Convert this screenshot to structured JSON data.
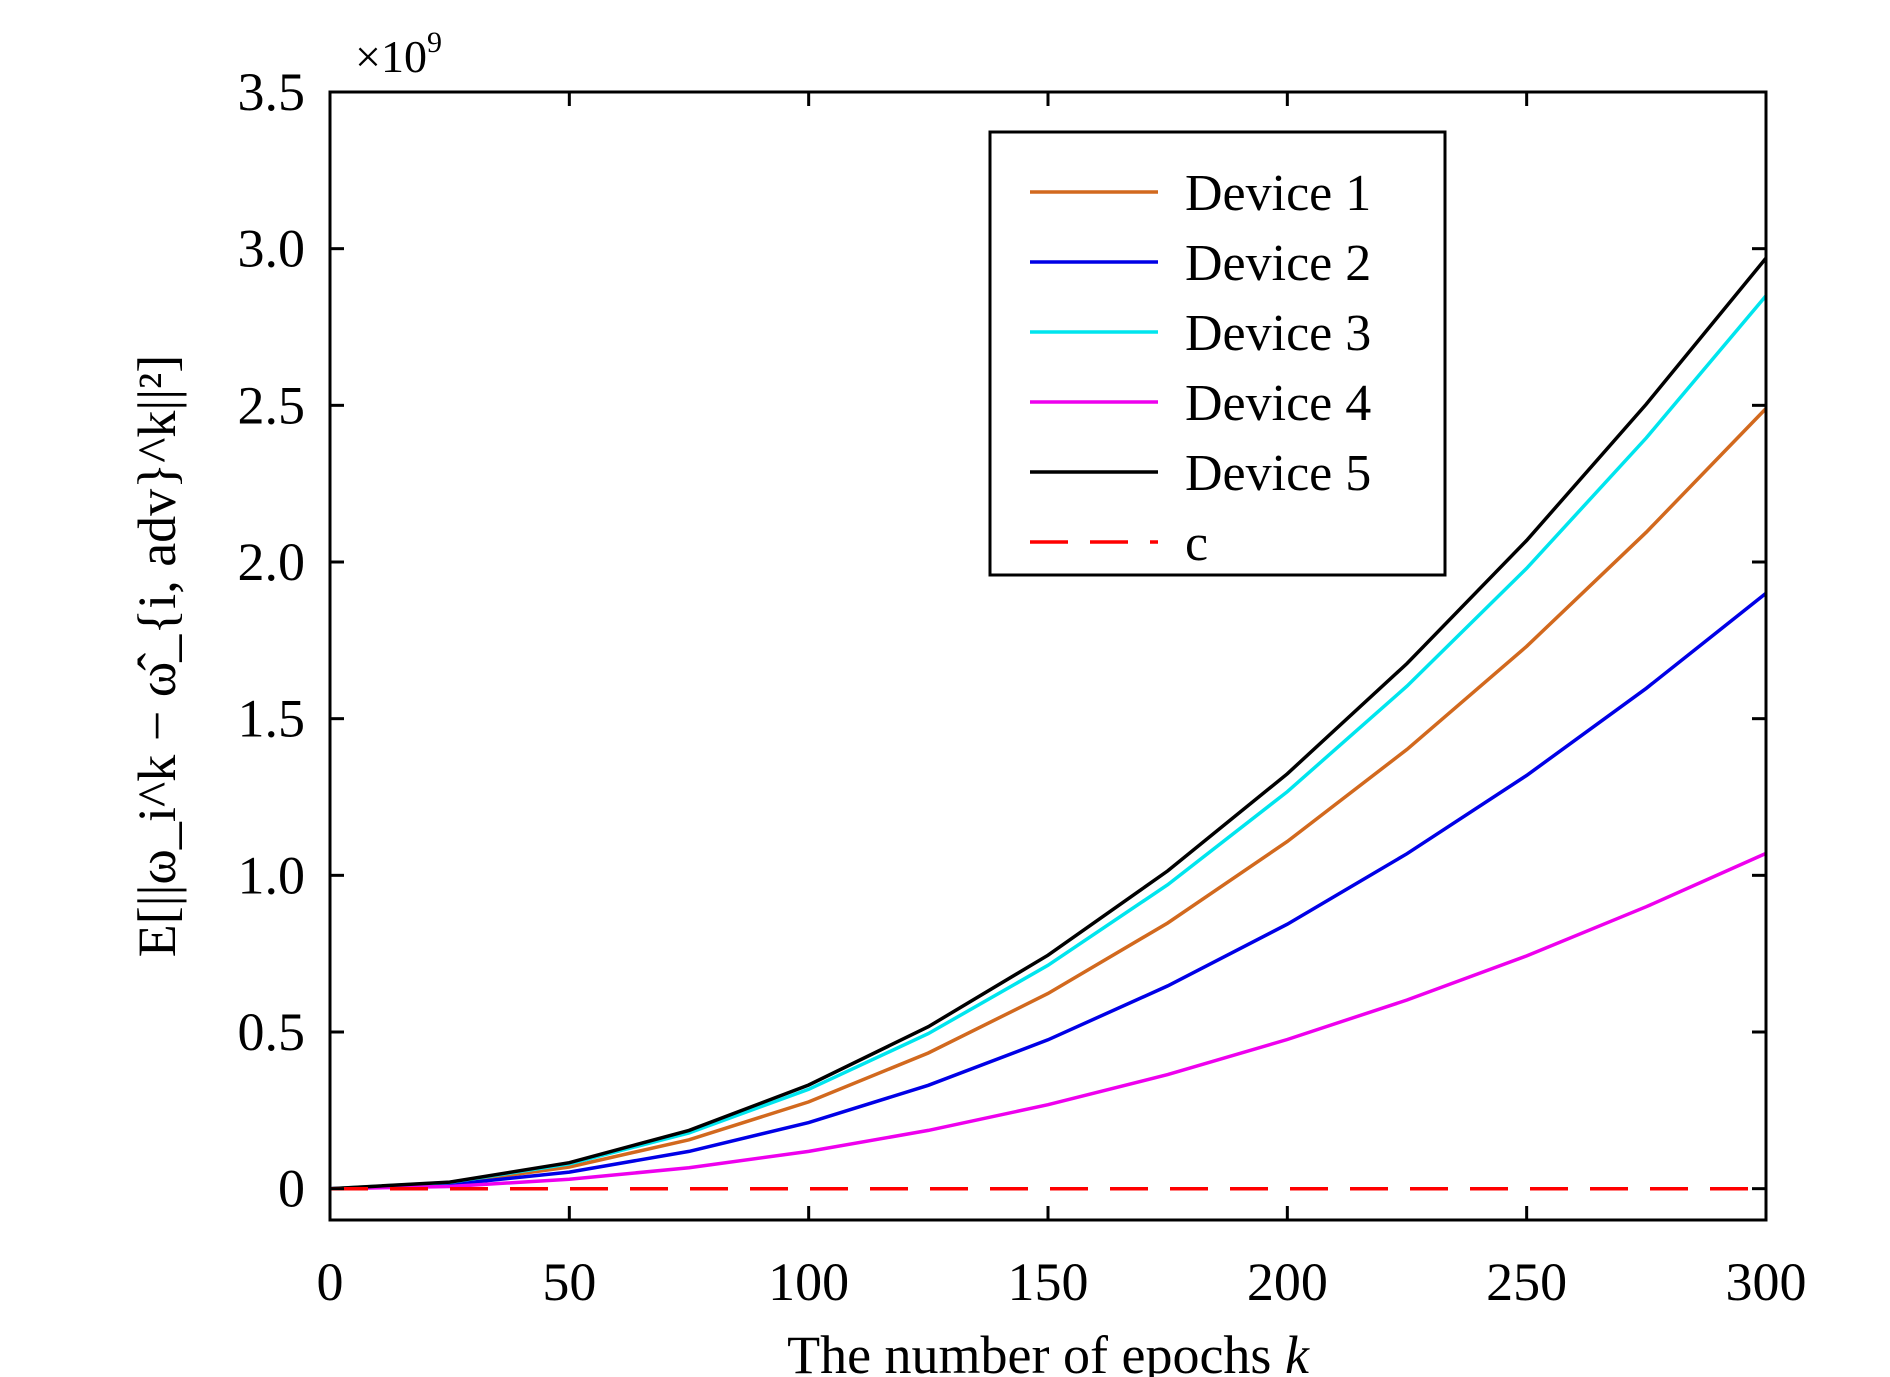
{
  "chart_data": {
    "type": "line",
    "title": "",
    "xlabel": "The number of epochs",
    "xlabel_var": "k",
    "ylabel": "E[||ω_i^k − ω̂_{i, adv}^k||²]",
    "y_multiplier": "×10",
    "y_multiplier_exp": "9",
    "xlim": [
      0,
      300
    ],
    "ylim": [
      -0.1,
      3.5
    ],
    "x_ticks": [
      0,
      50,
      100,
      150,
      200,
      250,
      300
    ],
    "x_tick_labels": [
      "0",
      "50",
      "100",
      "150",
      "200",
      "250",
      "300"
    ],
    "y_ticks": [
      0,
      0.5,
      1.0,
      1.5,
      2.0,
      2.5,
      3.0,
      3.5
    ],
    "y_tick_labels": [
      "0",
      "0.5",
      "1.0",
      "1.5",
      "2.0",
      "2.5",
      "3.0",
      "3.5"
    ],
    "grid": false,
    "legend_position": "top-right",
    "x": [
      0,
      25,
      50,
      75,
      100,
      125,
      150,
      175,
      200,
      225,
      250,
      275,
      300
    ],
    "series": [
      {
        "name": "Device 1",
        "color": "#d2691e",
        "dash": "solid",
        "values": [
          0,
          0.017,
          0.069,
          0.156,
          0.277,
          0.433,
          0.623,
          0.848,
          1.108,
          1.402,
          1.731,
          2.095,
          2.49
        ]
      },
      {
        "name": "Device 2",
        "color": "#0000e6",
        "dash": "solid",
        "values": [
          0,
          0.013,
          0.053,
          0.119,
          0.211,
          0.33,
          0.475,
          0.647,
          0.844,
          1.069,
          1.319,
          1.597,
          1.9
        ]
      },
      {
        "name": "Device 3",
        "color": "#00e5ee",
        "dash": "solid",
        "values": [
          0,
          0.02,
          0.079,
          0.178,
          0.317,
          0.495,
          0.713,
          0.97,
          1.267,
          1.604,
          1.98,
          2.396,
          2.85
        ]
      },
      {
        "name": "Device 4",
        "color": "#ee00ee",
        "dash": "solid",
        "values": [
          0,
          0.007,
          0.03,
          0.067,
          0.119,
          0.186,
          0.268,
          0.364,
          0.476,
          0.602,
          0.743,
          0.9,
          1.07
        ]
      },
      {
        "name": "Device 5",
        "color": "#000000",
        "dash": "solid",
        "values": [
          0,
          0.021,
          0.083,
          0.186,
          0.331,
          0.517,
          0.745,
          1.014,
          1.324,
          1.676,
          2.069,
          2.504,
          2.97
        ]
      },
      {
        "name": "c",
        "color": "#ff0000",
        "dash": "dashed",
        "values": [
          0,
          0,
          0,
          0,
          0,
          0,
          0,
          0,
          0,
          0,
          0,
          0,
          0
        ]
      }
    ]
  }
}
